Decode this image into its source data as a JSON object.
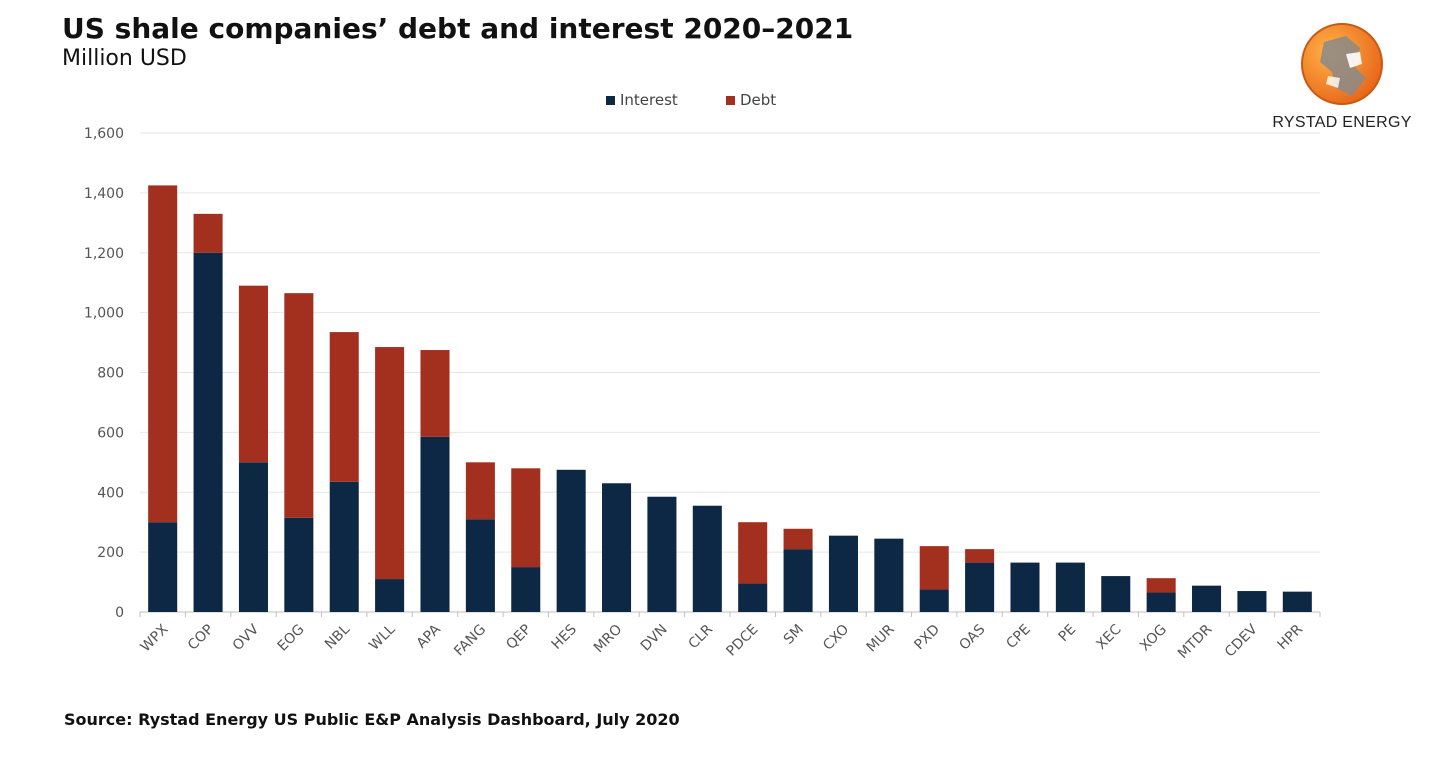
{
  "header": {
    "title": "US shale companies’ debt and interest 2020–2021",
    "subtitle": "Million USD"
  },
  "footer": {
    "source": "Source: Rystad Energy US Public E&P Analysis Dashboard, July 2020"
  },
  "logo": {
    "text": "RYSTAD ENERGY"
  },
  "colors": {
    "interest": "#0d2844",
    "debt": "#a3301f",
    "grid": "#e6e6e6",
    "axis": "#bfbfbf"
  },
  "chart_data": {
    "type": "bar",
    "stacked": true,
    "ylim": [
      0,
      1600
    ],
    "yticks": [
      0,
      200,
      400,
      600,
      800,
      1000,
      1200,
      1400,
      1600
    ],
    "ytick_labels": [
      "0",
      "200",
      "400",
      "600",
      "800",
      "1,000",
      "1,200",
      "1,400",
      "1,600"
    ],
    "grid": true,
    "legend_position": "top-center",
    "categories": [
      "WPX",
      "COP",
      "OVV",
      "EOG",
      "NBL",
      "WLL",
      "APA",
      "FANG",
      "QEP",
      "HES",
      "MRO",
      "DVN",
      "CLR",
      "PDCE",
      "SM",
      "CXO",
      "MUR",
      "PXD",
      "OAS",
      "CPE",
      "PE",
      "XEC",
      "XOG",
      "MTDR",
      "CDEV",
      "HPR"
    ],
    "series": [
      {
        "name": "Interest",
        "color": "#0d2844",
        "values": [
          300,
          1200,
          500,
          315,
          435,
          110,
          585,
          310,
          150,
          475,
          430,
          385,
          355,
          95,
          210,
          255,
          245,
          75,
          165,
          165,
          165,
          120,
          65,
          88,
          70,
          68
        ]
      },
      {
        "name": "Debt",
        "color": "#a3301f",
        "values": [
          1125,
          130,
          590,
          750,
          500,
          775,
          290,
          190,
          330,
          0,
          0,
          0,
          0,
          205,
          68,
          0,
          0,
          145,
          45,
          0,
          0,
          0,
          48,
          0,
          0,
          0
        ]
      }
    ]
  }
}
